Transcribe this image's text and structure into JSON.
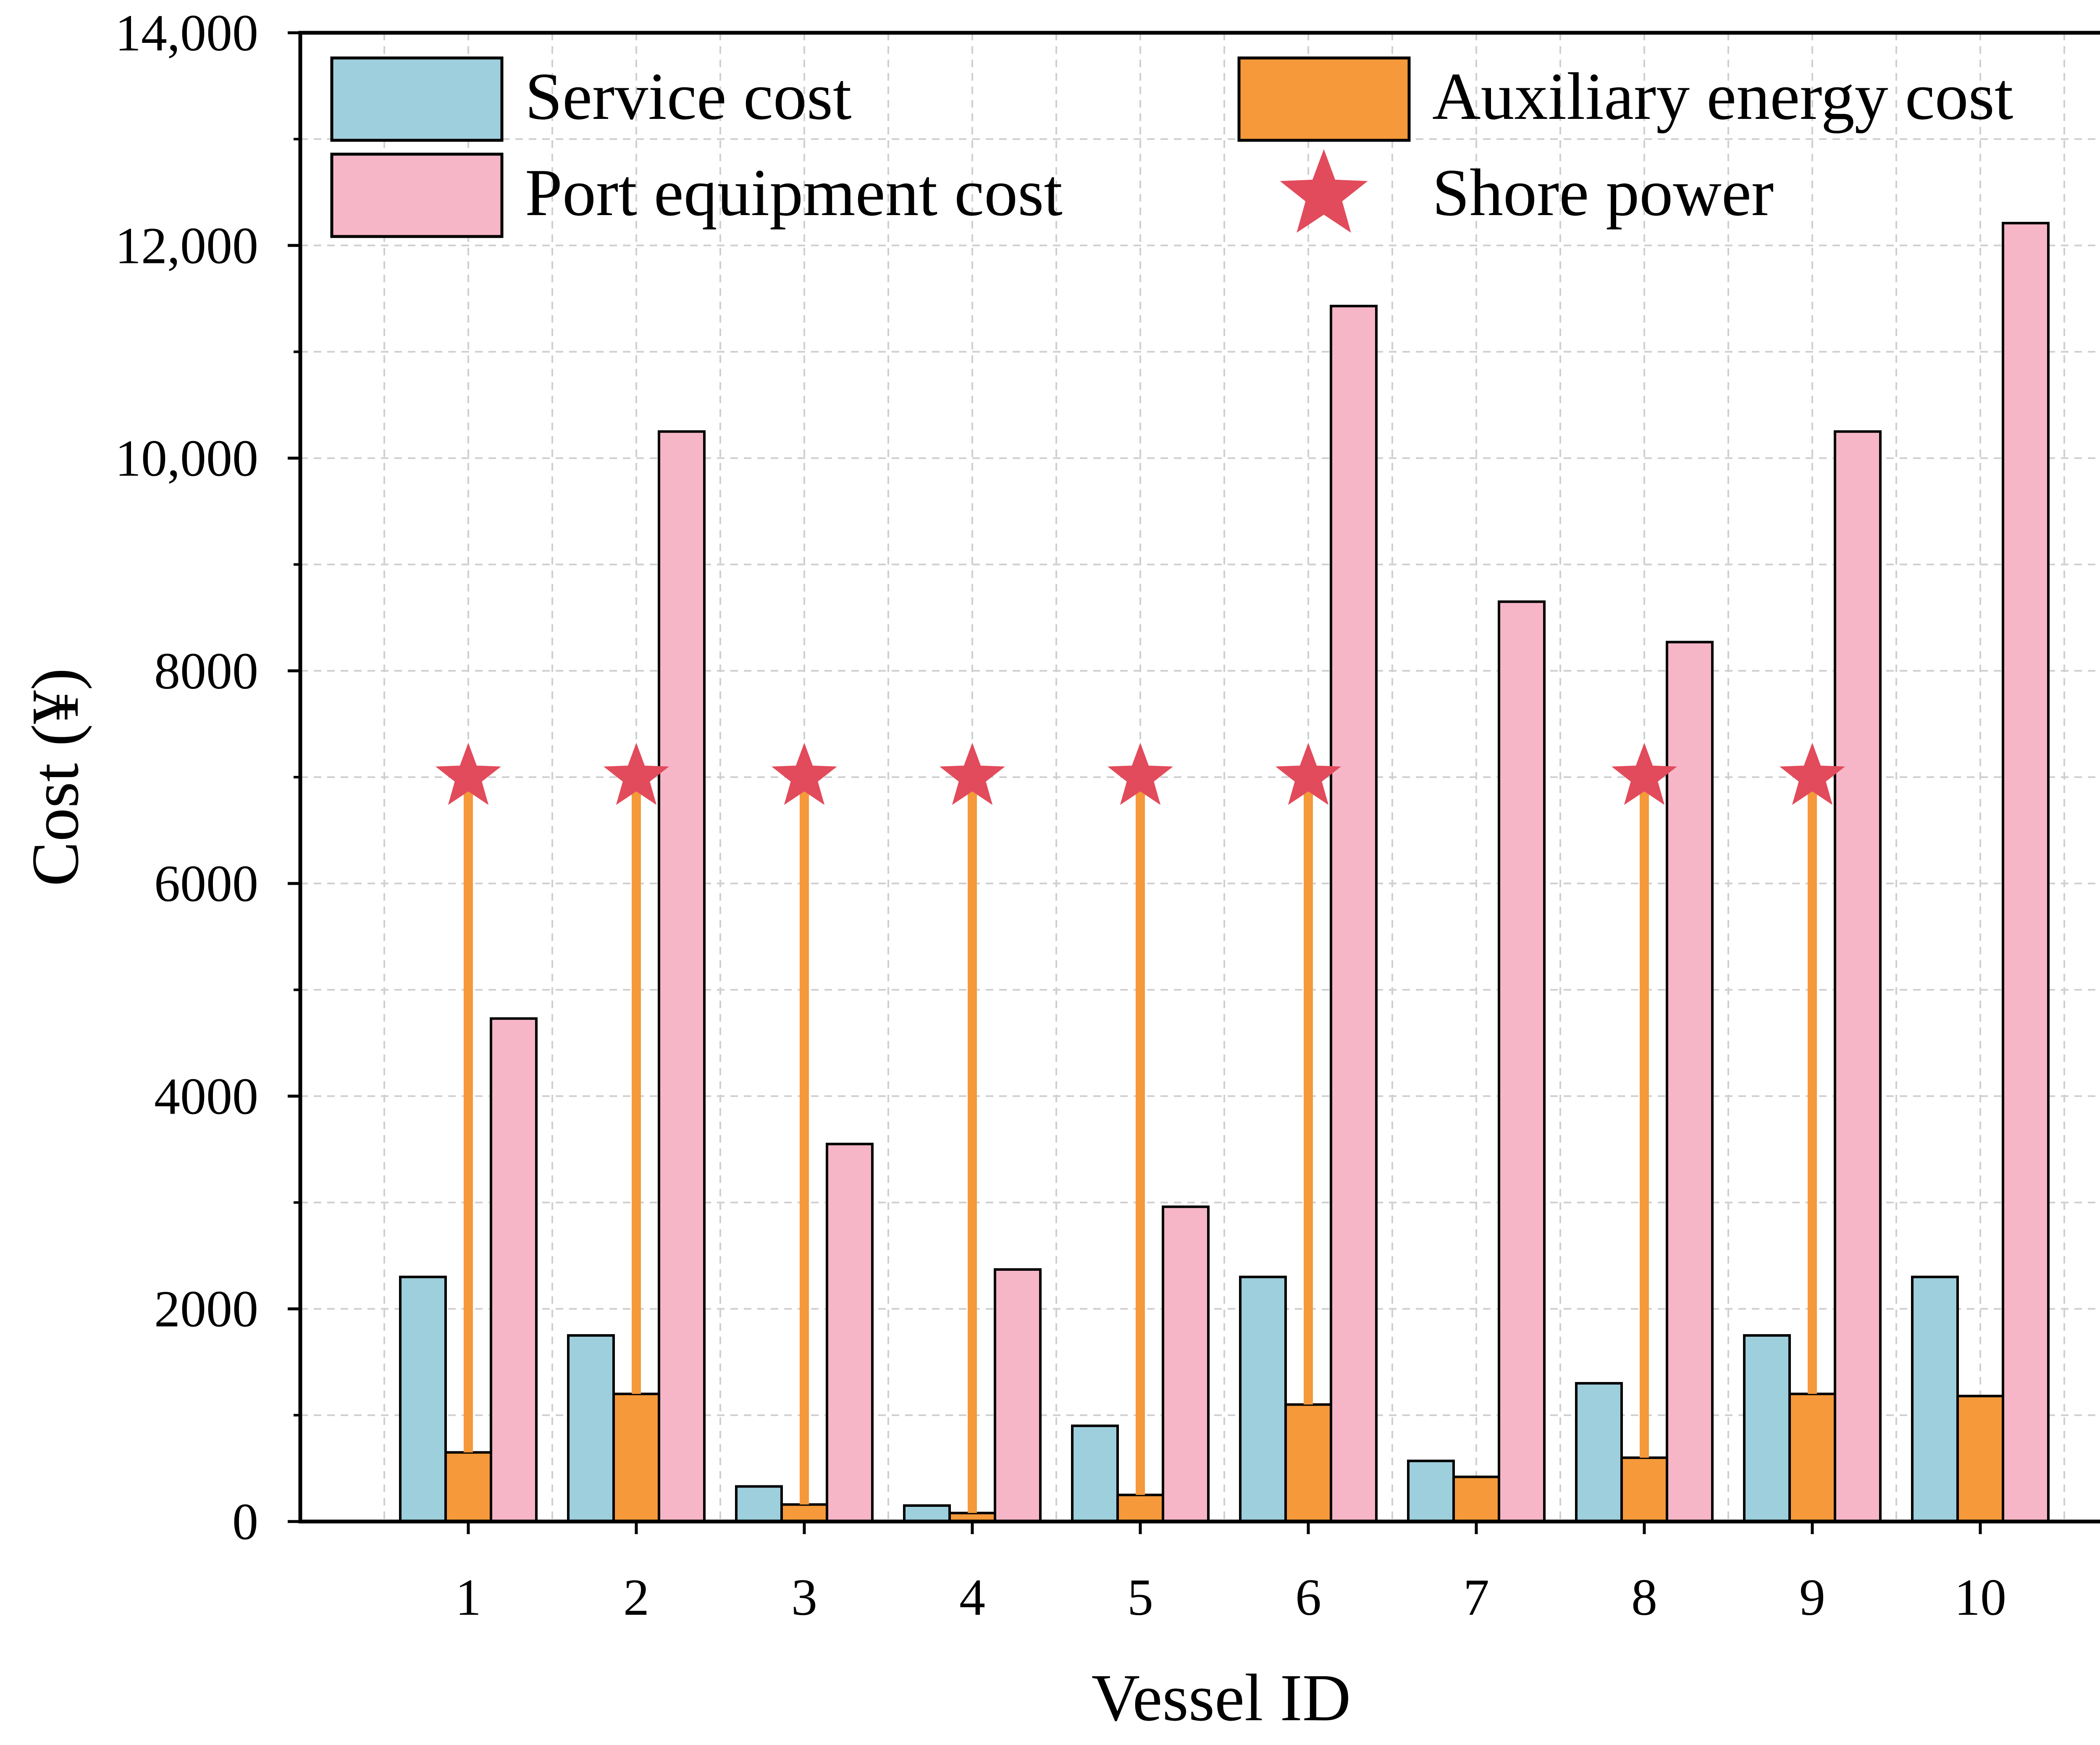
{
  "chart_data": {
    "type": "bar",
    "xlabel": "Vessel ID",
    "ylabel": "Cost (¥)",
    "categories": [
      "1",
      "2",
      "3",
      "4",
      "5",
      "6",
      "7",
      "8",
      "9",
      "10"
    ],
    "ylim": [
      0,
      14000
    ],
    "y_ticks": [
      0,
      2000,
      4000,
      6000,
      8000,
      10000,
      12000,
      14000
    ],
    "y_tick_labels": [
      "0",
      "2000",
      "4000",
      "6000",
      "8000",
      "10,000",
      "12,000",
      "14,000"
    ],
    "grid": true,
    "legend_position": "top",
    "series": [
      {
        "name": "Service cost",
        "kind": "bar",
        "color": "#9ecfdc",
        "values": [
          2300,
          1750,
          330,
          150,
          900,
          2300,
          570,
          1300,
          1750,
          2300
        ]
      },
      {
        "name": "Auxiliary energy cost",
        "kind": "bar",
        "color": "#f5993a",
        "values": [
          650,
          1200,
          160,
          80,
          250,
          1100,
          420,
          600,
          1200,
          1180
        ]
      },
      {
        "name": "Port equipment cost",
        "kind": "bar",
        "color": "#f6b6c7",
        "values": [
          4730,
          10250,
          3550,
          2370,
          2960,
          11430,
          8650,
          8270,
          10250,
          12210
        ]
      },
      {
        "name": "Shore power",
        "kind": "marker",
        "marker": "star",
        "color": "#e14b5b",
        "stem_color": "#f5993a",
        "values": [
          7000,
          7000,
          7000,
          7000,
          7000,
          7000,
          null,
          7000,
          7000,
          null
        ]
      }
    ]
  }
}
